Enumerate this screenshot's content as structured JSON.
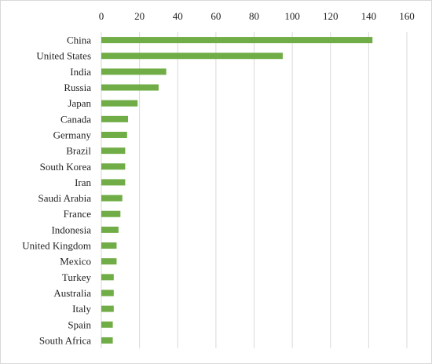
{
  "chart_data": {
    "type": "bar",
    "orientation": "horizontal",
    "title": "",
    "xlabel": "",
    "ylabel": "",
    "xlim": [
      0,
      160
    ],
    "x_ticks": [
      0,
      20,
      40,
      60,
      80,
      100,
      120,
      140,
      160
    ],
    "x_axis_position": "top",
    "grid": true,
    "bar_color": "#70AD47",
    "categories": [
      "China",
      "United States",
      "India",
      "Russia",
      "Japan",
      "Canada",
      "Germany",
      "Brazil",
      "South Korea",
      "Iran",
      "Saudi Arabia",
      "France",
      "Indonesia",
      "United Kingdom",
      "Mexico",
      "Turkey",
      "Australia",
      "Italy",
      "Spain",
      "South Africa"
    ],
    "values": [
      142,
      95,
      34,
      30,
      19,
      14,
      13.5,
      12.5,
      12.5,
      12.5,
      11,
      10,
      9,
      8,
      8,
      6.5,
      6.5,
      6.5,
      6,
      6
    ]
  }
}
